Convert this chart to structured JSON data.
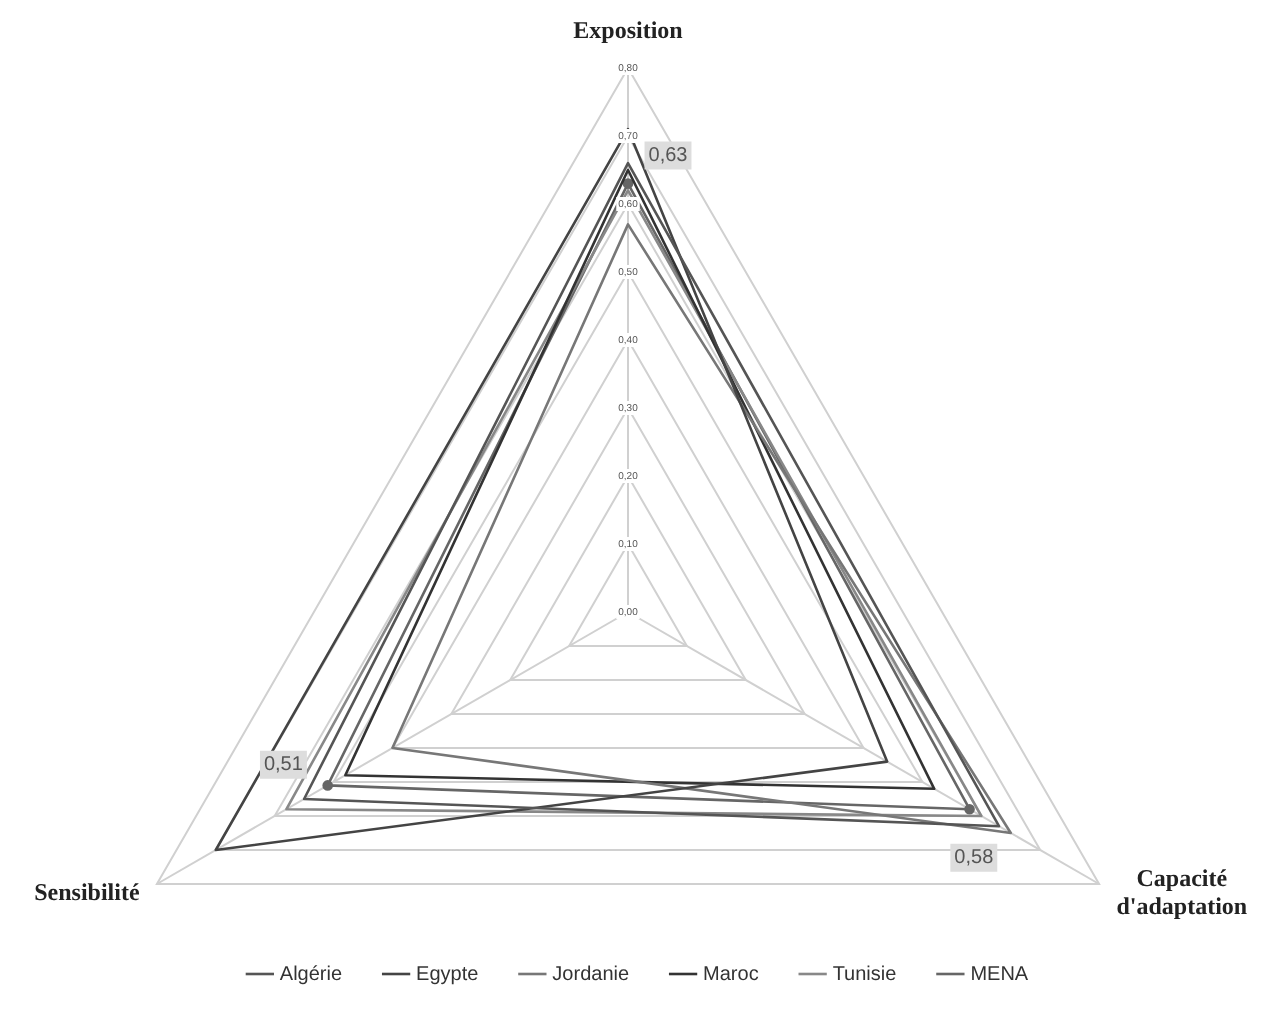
{
  "chart_data": {
    "type": "radar",
    "categories": [
      "Exposition",
      "Capacité d'adaptation",
      "Sensibilité"
    ],
    "ylim": [
      0,
      0.8
    ],
    "yticks": [
      {
        "value": 0,
        "label": "0,00"
      },
      {
        "value": 0.1,
        "label": "0,10"
      },
      {
        "value": 0.2,
        "label": "0,20"
      },
      {
        "value": 0.3,
        "label": "0,30"
      },
      {
        "value": 0.4,
        "label": "0,40"
      },
      {
        "value": 0.5,
        "label": "0,50"
      },
      {
        "value": 0.6,
        "label": "0,60"
      },
      {
        "value": 0.7,
        "label": "0,70"
      },
      {
        "value": 0.8,
        "label": "0,80"
      }
    ],
    "grid": true,
    "legend": "bottom",
    "series": [
      {
        "name": "Algérie",
        "color": "#555555",
        "values": [
          0.66,
          0.63,
          0.55
        ],
        "marker": "none"
      },
      {
        "name": "Egypte",
        "color": "#444444",
        "values": [
          0.71,
          0.44,
          0.7
        ],
        "marker": "none"
      },
      {
        "name": "Jordanie",
        "color": "#777777",
        "values": [
          0.57,
          0.65,
          0.4
        ],
        "marker": "none"
      },
      {
        "name": "Maroc",
        "color": "#333333",
        "values": [
          0.65,
          0.52,
          0.48
        ],
        "marker": "none"
      },
      {
        "name": "Tunisie",
        "color": "#888888",
        "values": [
          0.62,
          0.6,
          0.58
        ],
        "marker": "none"
      },
      {
        "name": "MENA",
        "color": "#666666",
        "values": [
          0.63,
          0.58,
          0.51
        ],
        "marker": "circle",
        "value_labels": [
          "0,63",
          "0,58",
          "0,51"
        ]
      }
    ]
  }
}
